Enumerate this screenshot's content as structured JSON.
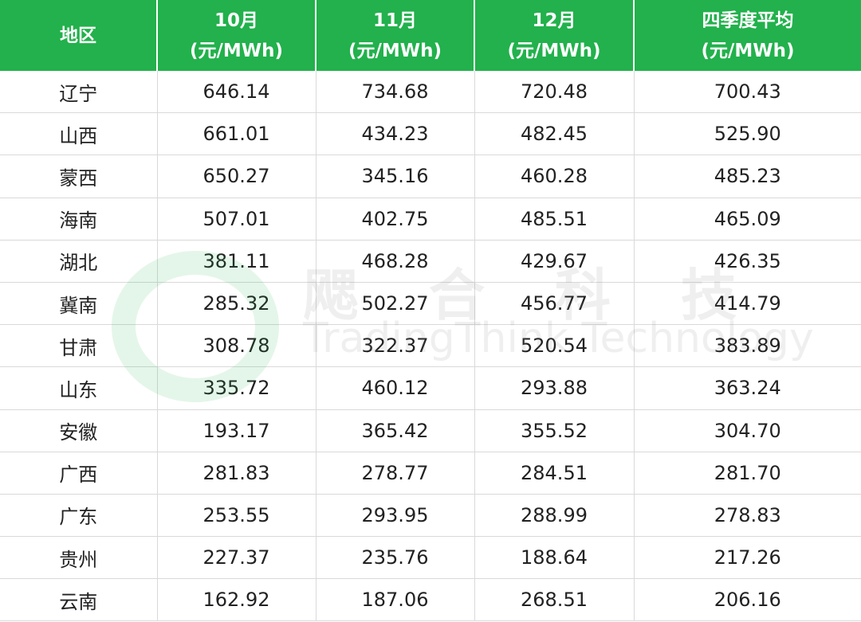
{
  "table": {
    "header": [
      {
        "label": "地区"
      },
      {
        "label": "10月",
        "unit": "(元/MWh)"
      },
      {
        "label": "11月",
        "unit": "(元/MWh)"
      },
      {
        "label": "12月",
        "unit": "(元/MWh)"
      },
      {
        "label": "四季度平均",
        "unit": "(元/MWh)"
      }
    ],
    "rows": [
      [
        "辽宁",
        "646.14",
        "734.68",
        "720.48",
        "700.43"
      ],
      [
        "山西",
        "661.01",
        "434.23",
        "482.45",
        "525.90"
      ],
      [
        "蒙西",
        "650.27",
        "345.16",
        "460.28",
        "485.23"
      ],
      [
        "海南",
        "507.01",
        "402.75",
        "485.51",
        "465.09"
      ],
      [
        "湖北",
        "381.11",
        "468.28",
        "429.67",
        "426.35"
      ],
      [
        "冀南",
        "285.32",
        "502.27",
        "456.77",
        "414.79"
      ],
      [
        "甘肃",
        "308.78",
        "322.37",
        "520.54",
        "383.89"
      ],
      [
        "山东",
        "335.72",
        "460.12",
        "293.88",
        "363.24"
      ],
      [
        "安徽",
        "193.17",
        "365.42",
        "355.52",
        "304.70"
      ],
      [
        "广西",
        "281.83",
        "278.77",
        "284.51",
        "281.70"
      ],
      [
        "广东",
        "253.55",
        "293.95",
        "288.99",
        "278.83"
      ],
      [
        "贵州",
        "227.37",
        "235.76",
        "188.64",
        "217.26"
      ],
      [
        "云南",
        "162.92",
        "187.06",
        "268.51",
        "206.16"
      ]
    ]
  },
  "watermark": {
    "name": "飔合科技",
    "subtitle": "TradingThink Technology"
  }
}
